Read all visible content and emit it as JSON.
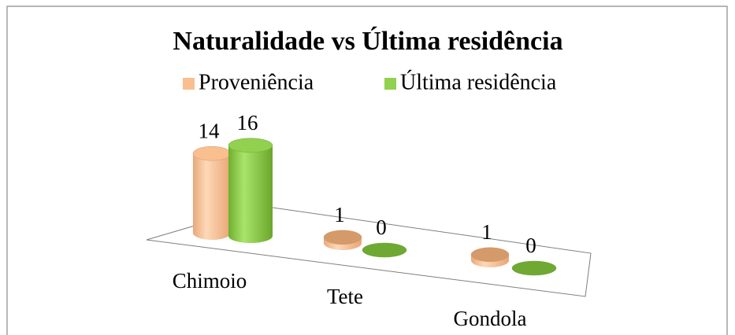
{
  "chart_data": {
    "type": "bar3d",
    "title": "Naturalidade vs Última residência",
    "categories": [
      "Chimoio",
      "Tete",
      "Gondola"
    ],
    "series": [
      {
        "name": "Proveniência",
        "color": "#f9bf8f",
        "values": [
          14,
          1,
          1
        ]
      },
      {
        "name": "Última residência",
        "color": "#92d050",
        "values": [
          16,
          0,
          0
        ]
      }
    ],
    "legend": "top"
  }
}
